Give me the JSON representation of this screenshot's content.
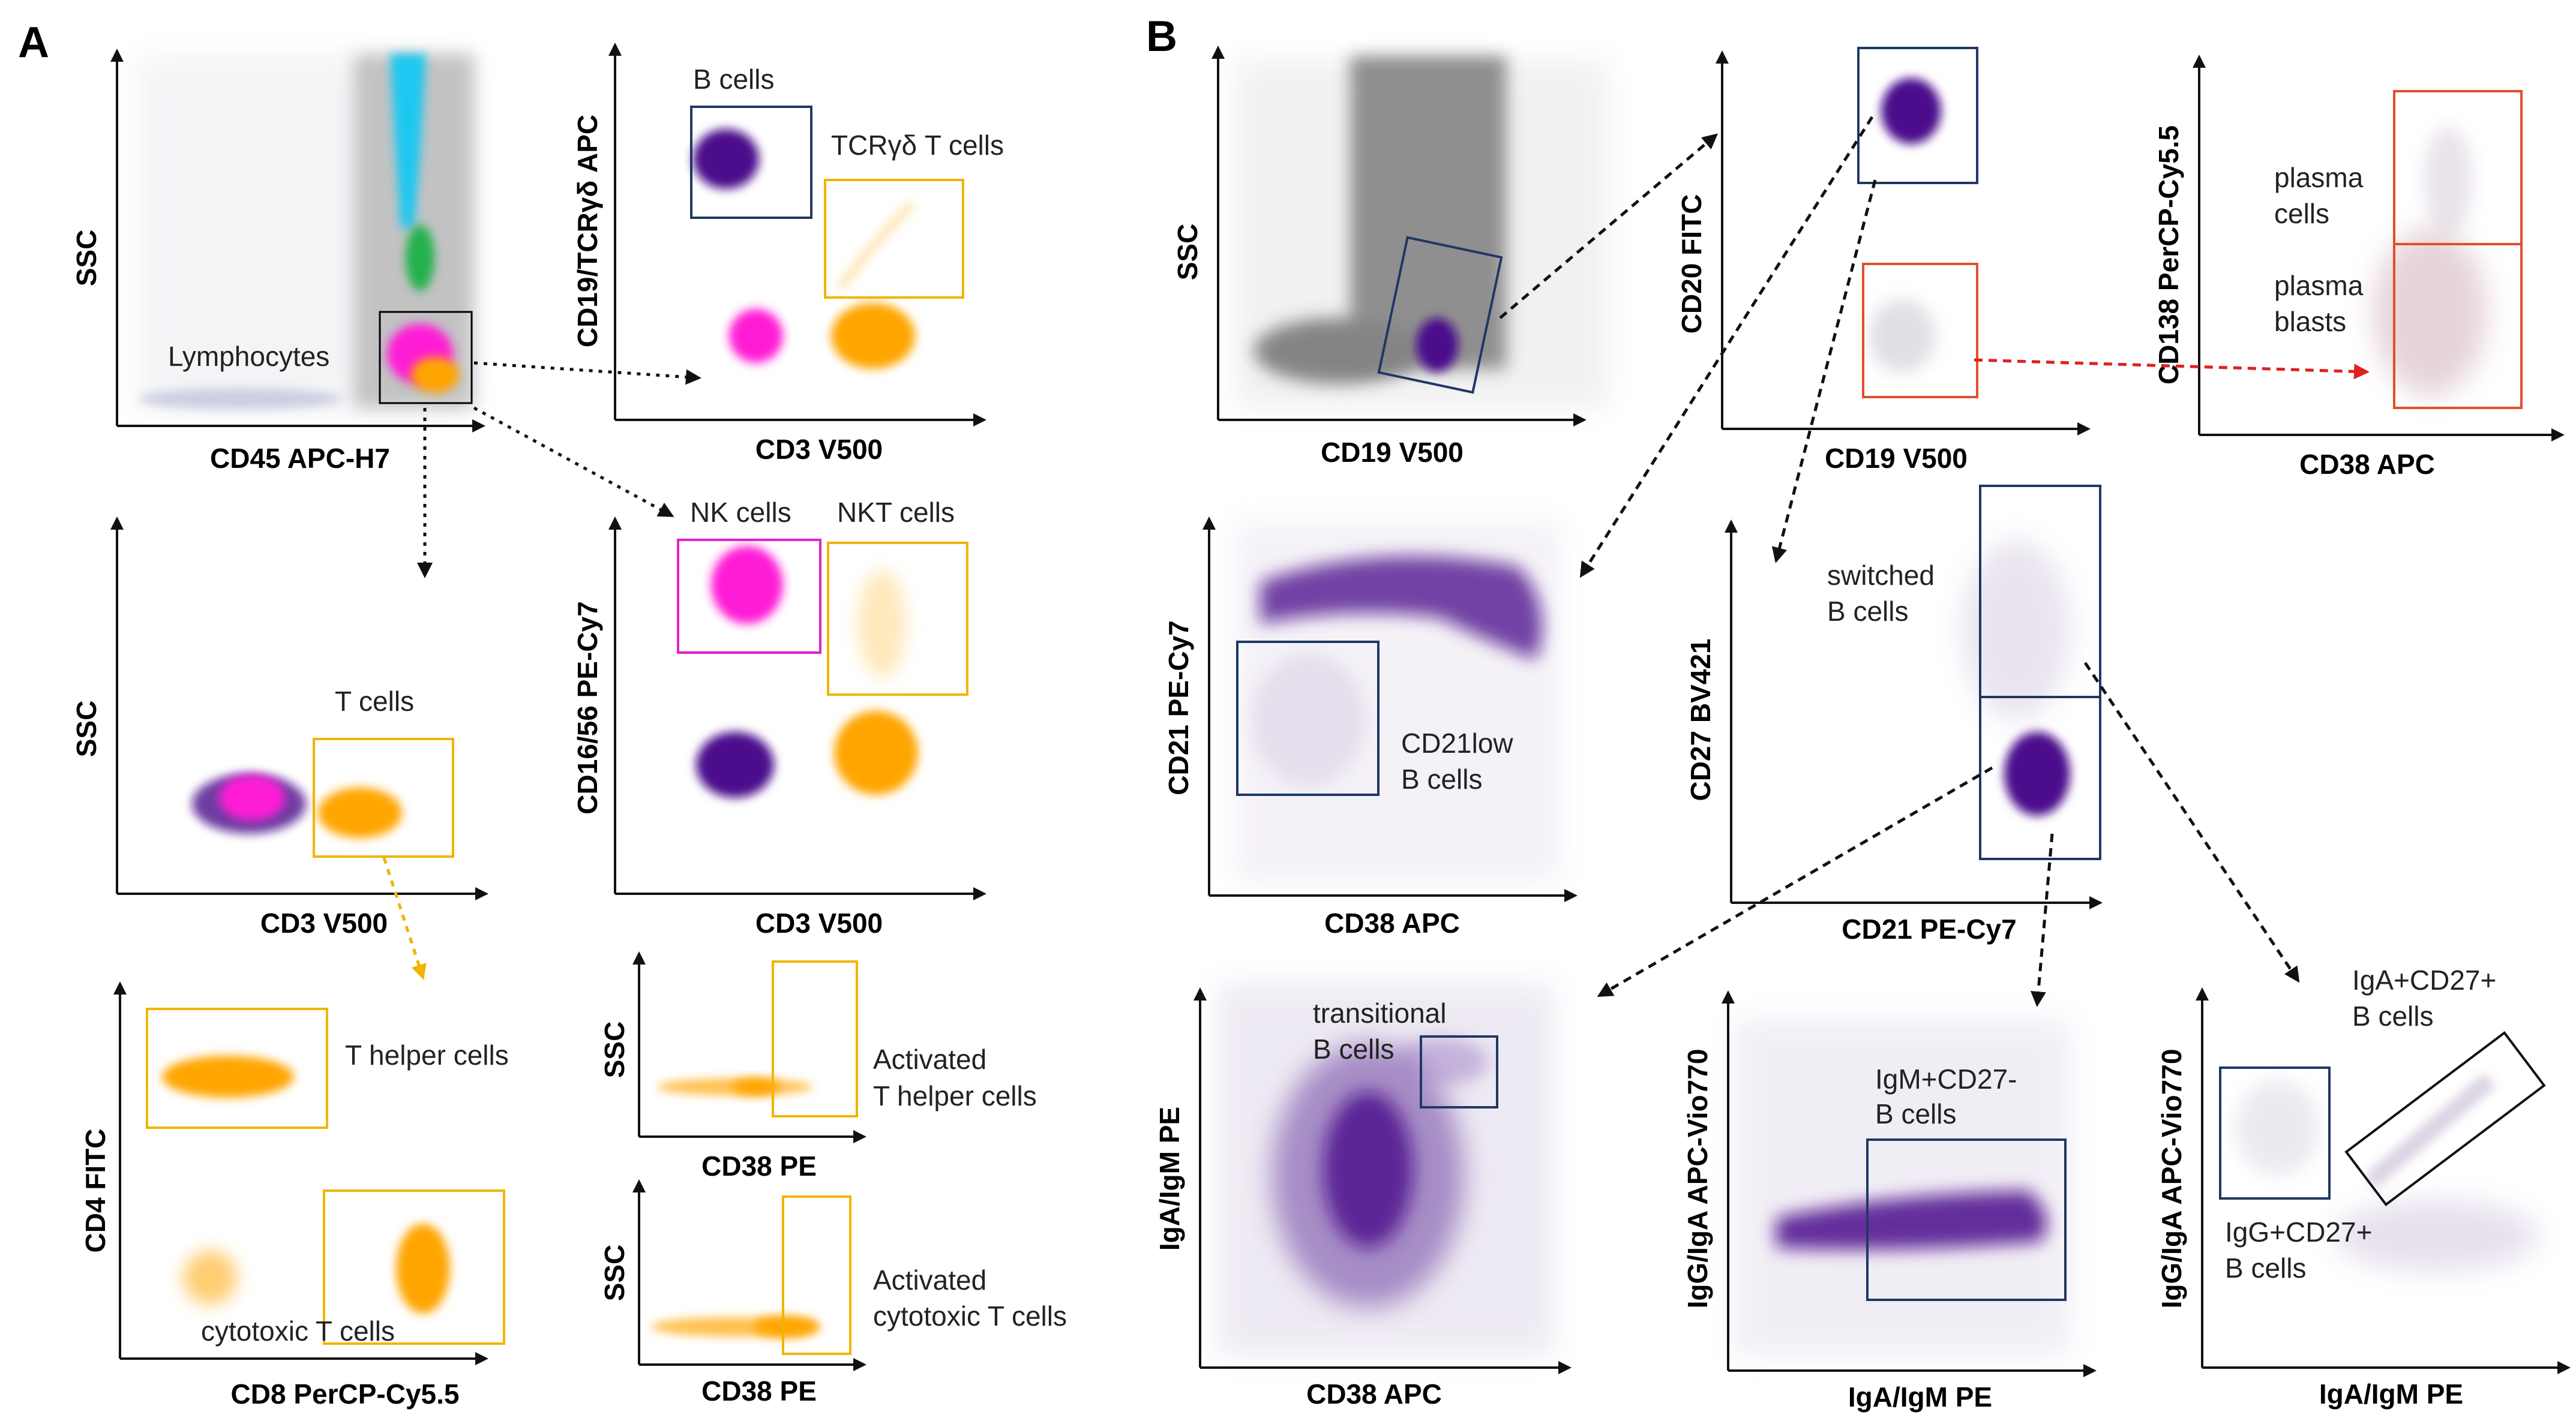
{
  "panels": [
    {
      "id": "A",
      "letter": "A"
    },
    {
      "id": "B",
      "letter": "B"
    }
  ],
  "plots": [
    {
      "id": "a1",
      "xlabel": "CD45 APC-H7",
      "ylabel": "SSC"
    },
    {
      "id": "a2",
      "xlabel": "CD3 V500",
      "ylabel": "CD19/TCRγδ APC"
    },
    {
      "id": "a3",
      "xlabel": "CD3 V500",
      "ylabel": "SSC"
    },
    {
      "id": "a4",
      "xlabel": "CD3 V500",
      "ylabel": "CD16/56 PE-Cy7"
    },
    {
      "id": "a5",
      "xlabel": "CD8 PerCP-Cy5.5",
      "ylabel": "CD4 FITC"
    },
    {
      "id": "a6",
      "xlabel": "CD38 PE",
      "ylabel": "SSC"
    },
    {
      "id": "a7",
      "xlabel": "CD38 PE",
      "ylabel": "SSC"
    },
    {
      "id": "b1",
      "xlabel": "CD19 V500",
      "ylabel": "SSC"
    },
    {
      "id": "b2",
      "xlabel": "CD19 V500",
      "ylabel": "CD20 FITC"
    },
    {
      "id": "b3",
      "xlabel": "CD38 APC",
      "ylabel": "CD138 PerCP-Cy5.5"
    },
    {
      "id": "b4",
      "xlabel": "CD38 APC",
      "ylabel": "CD21 PE-Cy7"
    },
    {
      "id": "b5",
      "xlabel": "CD21 PE-Cy7",
      "ylabel": "CD27 BV421"
    },
    {
      "id": "b6",
      "xlabel": "CD38 APC",
      "ylabel": "IgA/IgM PE"
    },
    {
      "id": "b7",
      "xlabel": "IgA/IgM PE",
      "ylabel": "IgG/IgA APC-Vio770"
    },
    {
      "id": "b8",
      "xlabel": "IgA/IgM PE",
      "ylabel": "IgG/IgA APC-Vio770"
    }
  ],
  "gates": {
    "lymphocytes": "Lymphocytes",
    "b_cells": "B cells",
    "tcrgd_t_cells": "TCRγδ T cells",
    "t_cells": "T cells",
    "nk_cells": "NK cells",
    "nkt_cells": "NKT cells",
    "t_helper": "T helper cells",
    "cytotoxic_t": "cytotoxic T cells",
    "activated_th": [
      "Activated",
      "T helper cells"
    ],
    "activated_ct": [
      "Activated",
      "cytotoxic T cells"
    ],
    "plasma_cells": [
      "plasma",
      "cells"
    ],
    "plasma_blasts": [
      "plasma",
      "blasts"
    ],
    "cd21low": [
      "CD21low",
      "B cells"
    ],
    "switched": [
      "switched",
      "B cells"
    ],
    "transitional": [
      "transitional",
      "B cells"
    ],
    "igm_cd27neg": [
      "IgM+CD27-",
      "B cells"
    ],
    "iga_cd27pos": [
      "IgA+CD27+",
      "B cells"
    ],
    "igg_cd27pos": [
      "IgG+CD27+",
      "B cells"
    ]
  },
  "colors": {
    "purple": "#4b0a8c",
    "magenta": "#ff1fd6",
    "orange": "#ffa500",
    "cyan": "#1ec8f0",
    "green": "#22b14c",
    "gray": "#7a7a7a",
    "navy": "#1f3864",
    "red_gate": "#e0502a",
    "yellow_gate": "#f2b400",
    "magenta_gate": "#e020c8",
    "red_arrow": "#e02020"
  }
}
